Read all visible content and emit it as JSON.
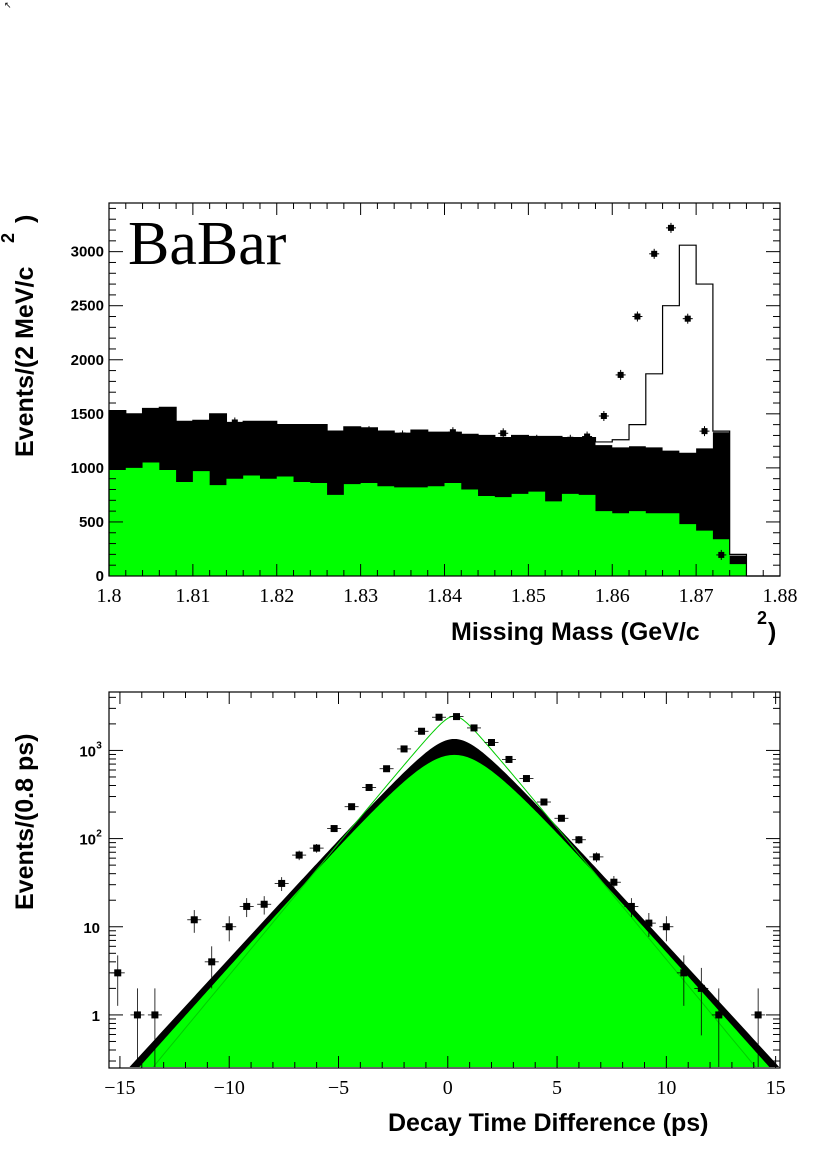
{
  "chart_data": [
    {
      "type": "bar",
      "watermark": "BaBar",
      "xlabel": "Missing Mass (GeV/c",
      "xlabel_sup": "2",
      "xlabel_close": ")",
      "ylabel": "Events/(2 MeV/c",
      "ylabel_sup": "2",
      "ylabel_close": ")",
      "xlim": [
        1.8,
        1.88
      ],
      "ylim": [
        0,
        3450
      ],
      "xticks": [
        "1.8",
        "1.81",
        "1.82",
        "1.83",
        "1.84",
        "1.85",
        "1.86",
        "1.87",
        "1.88"
      ],
      "yticks": [
        "0",
        "500",
        "1000",
        "1500",
        "2000",
        "2500",
        "3000"
      ],
      "bin_width": 0.002,
      "bins_start": 1.8,
      "colors": {
        "green": "#00ff00",
        "black": "#000000",
        "line": "#000000"
      },
      "series": [
        {
          "style": "filled-green",
          "values": [
            980,
            1000,
            1050,
            980,
            870,
            970,
            840,
            900,
            930,
            900,
            920,
            870,
            860,
            750,
            850,
            860,
            830,
            820,
            820,
            830,
            860,
            800,
            740,
            730,
            760,
            780,
            690,
            760,
            750,
            600,
            580,
            600,
            580,
            580,
            480,
            420,
            340,
            110,
            0,
            0
          ]
        },
        {
          "style": "filled-black",
          "values": [
            1530,
            1500,
            1550,
            1560,
            1430,
            1440,
            1500,
            1420,
            1430,
            1430,
            1400,
            1400,
            1400,
            1340,
            1380,
            1370,
            1340,
            1320,
            1350,
            1330,
            1330,
            1310,
            1300,
            1280,
            1300,
            1290,
            1290,
            1280,
            1280,
            1210,
            1190,
            1200,
            1190,
            1160,
            1140,
            1180,
            1330,
            190,
            0,
            0
          ]
        },
        {
          "style": "outline",
          "values": [
            1530,
            1500,
            1550,
            1560,
            1430,
            1440,
            1500,
            1420,
            1430,
            1430,
            1400,
            1400,
            1400,
            1340,
            1380,
            1370,
            1340,
            1320,
            1350,
            1330,
            1330,
            1310,
            1300,
            1280,
            1300,
            1290,
            1290,
            1280,
            1280,
            1240,
            1260,
            1400,
            1870,
            2500,
            3060,
            2700,
            1340,
            200,
            0,
            0
          ]
        },
        {
          "style": "data-points",
          "x": [
            1.815,
            1.825,
            1.831,
            1.835,
            1.841,
            1.847,
            1.851,
            1.855,
            1.857,
            1.859,
            1.861,
            1.863,
            1.865,
            1.867,
            1.869,
            1.871,
            1.873
          ],
          "y": [
            1420,
            1320,
            1340,
            1300,
            1330,
            1320,
            1260,
            1260,
            1290,
            1480,
            1860,
            2400,
            2980,
            3220,
            2380,
            1340,
            195
          ]
        }
      ]
    },
    {
      "type": "area",
      "xlabel": "Decay Time Difference (ps)",
      "ylabel": "Events/(0.8 ps)",
      "xlim": [
        -15.5,
        15.2
      ],
      "ylim_log": [
        0.25,
        4600
      ],
      "yscale": "log",
      "xticks": [
        "−15",
        "−10",
        "−5",
        "0",
        "5",
        "10",
        "15"
      ],
      "yticks": [
        "1",
        "10",
        "10",
        "10"
      ],
      "ytick_exponents": [
        "",
        "",
        "2",
        "3"
      ],
      "colors": {
        "green": "#00ff00",
        "black": "#000000",
        "fit": "#00cc00"
      },
      "fit_line": {
        "peak": 2450,
        "center": 0.3,
        "tau": 1.45
      },
      "black_band": {
        "peak": 1350,
        "center": 0.3,
        "tau": 1.6,
        "core": 1.2
      },
      "green_band": {
        "peak": 890,
        "center": 0.3,
        "tau": 1.55,
        "core": 1.9
      },
      "points": {
        "x": [
          -15.1,
          -14.2,
          -13.4,
          -11.6,
          -10.8,
          -10.0,
          -9.2,
          -8.4,
          -7.6,
          -6.8,
          -6.0,
          -5.2,
          -4.4,
          -3.6,
          -2.8,
          -2.0,
          -1.2,
          -0.4,
          0.4,
          1.2,
          2.0,
          2.8,
          3.6,
          4.4,
          5.2,
          6.0,
          6.8,
          7.6,
          8.4,
          9.2,
          10.0,
          10.8,
          11.6,
          12.4,
          14.2
        ],
        "y": [
          3,
          1,
          1,
          12,
          4,
          10,
          17,
          18,
          31,
          65,
          78,
          130,
          230,
          380,
          620,
          1040,
          1650,
          2380,
          2420,
          1800,
          1230,
          790,
          480,
          260,
          170,
          97,
          62,
          32,
          17,
          11,
          10,
          3,
          2,
          1,
          1
        ]
      }
    }
  ]
}
